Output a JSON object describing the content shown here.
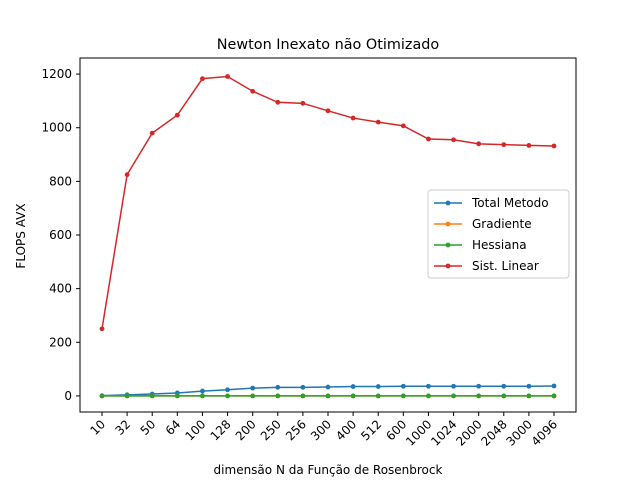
{
  "chart_data": {
    "type": "line",
    "title": "Newton Inexato não Otimizado",
    "xlabel": "dimensão N da Função de Rosenbrock",
    "ylabel": "FLOPS AVX",
    "categories": [
      "10",
      "32",
      "50",
      "64",
      "100",
      "128",
      "200",
      "250",
      "256",
      "300",
      "400",
      "512",
      "600",
      "1000",
      "1024",
      "2000",
      "2048",
      "3000",
      "4096"
    ],
    "ylim": [
      -60,
      1260
    ],
    "yticks": [
      0,
      200,
      400,
      600,
      800,
      1000,
      1200
    ],
    "grid": false,
    "legend_position": "center-right",
    "series": [
      {
        "name": "Total Metodo",
        "color": "#1f77b4",
        "values": [
          1,
          4,
          7,
          11,
          18,
          23,
          29,
          32,
          32,
          33,
          35,
          35,
          36,
          36,
          36,
          36,
          36,
          36,
          37
        ]
      },
      {
        "name": "Gradiente",
        "color": "#ff7f0e",
        "values": [
          0,
          0,
          0,
          0,
          0,
          0,
          0,
          0,
          0,
          0,
          0,
          0,
          0,
          0,
          0,
          0,
          0,
          0,
          0
        ]
      },
      {
        "name": "Hessiana",
        "color": "#2ca02c",
        "values": [
          0,
          0,
          0,
          0,
          0,
          0,
          0,
          0,
          0,
          0,
          0,
          0,
          0,
          0,
          0,
          0,
          0,
          0,
          0
        ]
      },
      {
        "name": "Sist. Linear",
        "color": "#d62728",
        "values": [
          250,
          825,
          980,
          1047,
          1183,
          1191,
          1136,
          1095,
          1091,
          1063,
          1036,
          1021,
          1007,
          958,
          955,
          940,
          937,
          934,
          932
        ]
      }
    ]
  }
}
